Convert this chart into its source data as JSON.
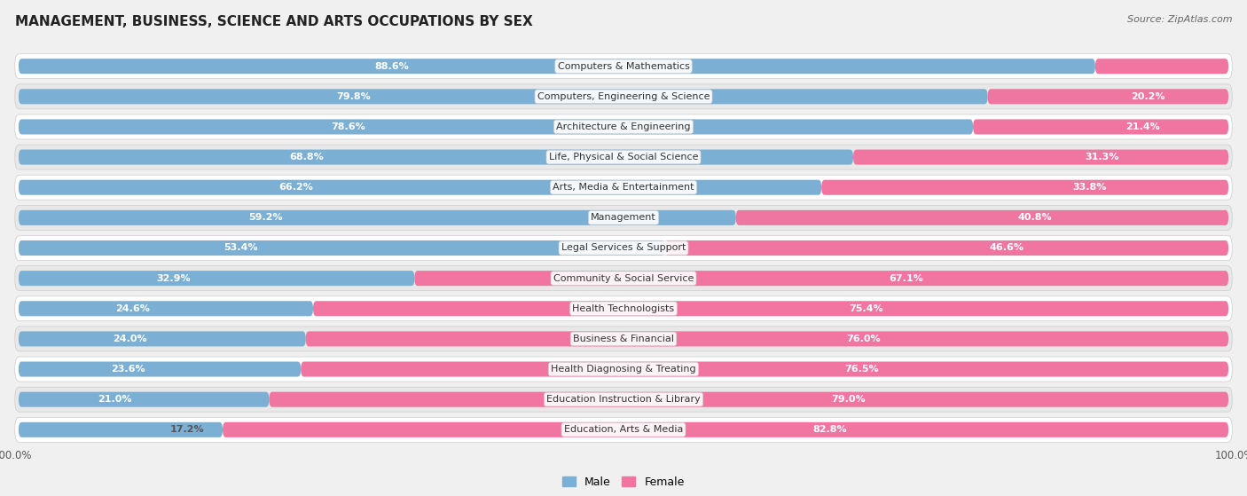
{
  "title": "MANAGEMENT, BUSINESS, SCIENCE AND ARTS OCCUPATIONS BY SEX",
  "source": "Source: ZipAtlas.com",
  "categories": [
    "Computers & Mathematics",
    "Computers, Engineering & Science",
    "Architecture & Engineering",
    "Life, Physical & Social Science",
    "Arts, Media & Entertainment",
    "Management",
    "Legal Services & Support",
    "Community & Social Service",
    "Health Technologists",
    "Business & Financial",
    "Health Diagnosing & Treating",
    "Education Instruction & Library",
    "Education, Arts & Media"
  ],
  "male_pct": [
    88.6,
    79.8,
    78.6,
    68.8,
    66.2,
    59.2,
    53.4,
    32.9,
    24.6,
    24.0,
    23.6,
    21.0,
    17.2
  ],
  "female_pct": [
    11.4,
    20.2,
    21.4,
    31.3,
    33.8,
    40.8,
    46.6,
    67.1,
    75.4,
    76.0,
    76.5,
    79.0,
    82.8
  ],
  "male_color": "#7bafd4",
  "female_color": "#f075a0",
  "bg_color": "#f0f0f0",
  "row_color_even": "#ffffff",
  "row_color_odd": "#e8e8e8",
  "label_white": "#ffffff",
  "label_dark": "#555555",
  "cat_label_color": "#333333",
  "title_fontsize": 11,
  "label_fontsize": 8,
  "category_fontsize": 8,
  "source_fontsize": 8
}
